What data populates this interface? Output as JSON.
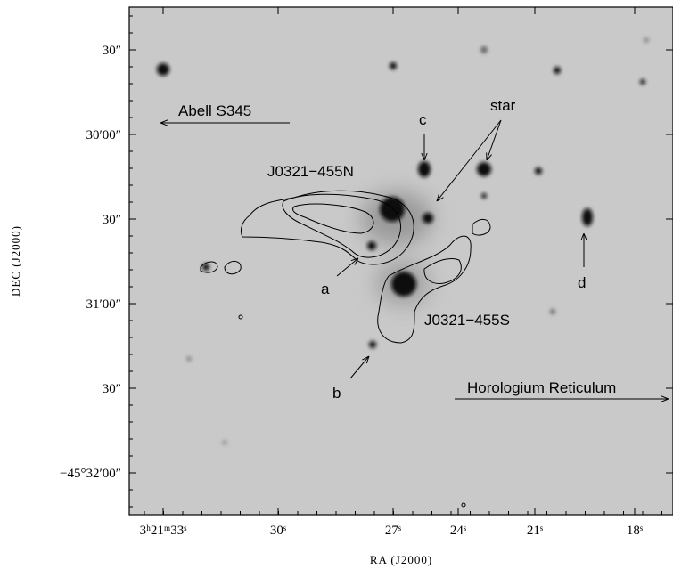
{
  "figure": {
    "x_axis_label": "RA (J2000)",
    "y_axis_label": "DEC (J2000)",
    "x_tick_labels": [
      "3ʰ21ᵐ33ˢ",
      "30ˢ",
      "27ˢ",
      "24ˢ",
      "21ˢ",
      "18ˢ"
    ],
    "y_tick_labels": [
      "30″",
      "30′00″",
      "30″",
      "31′00″",
      "30″",
      "−45°32′00″"
    ],
    "annotations": {
      "abell": "Abell S345",
      "horologium": "Horologium Reticulum",
      "north_source": "J0321−455N",
      "south_source": "J0321−455S",
      "star": "star",
      "a": "a",
      "b": "b",
      "c": "c",
      "d": "d"
    }
  }
}
